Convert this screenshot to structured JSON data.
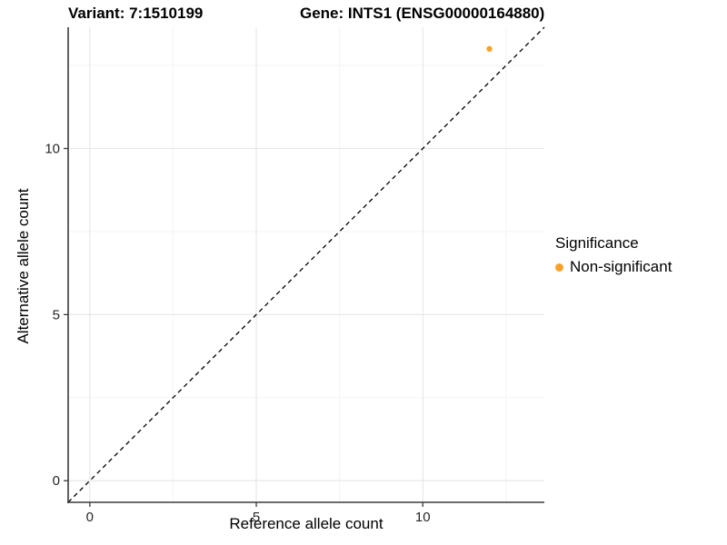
{
  "chart_data": {
    "type": "scatter",
    "titles": {
      "left": "Variant: 7:1510199",
      "right": "Gene: INTS1 (ENSG00000164880)"
    },
    "xlabel": "Reference allele count",
    "ylabel": "Alternative allele count",
    "xlim": [
      -0.65,
      13.65
    ],
    "ylim": [
      -0.65,
      13.65
    ],
    "x_major_ticks": [
      0,
      5,
      10
    ],
    "y_major_ticks": [
      0,
      5,
      10
    ],
    "x_minor_ticks": [
      2.5,
      7.5,
      12.5
    ],
    "y_minor_ticks": [
      2.5,
      7.5,
      12.5
    ],
    "grid": "major+minor",
    "points": [
      {
        "x": 12,
        "y": 13,
        "group": "Non-significant"
      }
    ],
    "reference_line": {
      "slope": 1,
      "intercept": 0,
      "style": "dashed",
      "color": "#000000"
    },
    "legend": {
      "title": "Significance",
      "position": "right",
      "entries": [
        {
          "label": "Non-significant",
          "color": "#F8A12C",
          "marker": "circle"
        }
      ]
    },
    "colors": {
      "point": "#F8A12C",
      "axis_line": "#3b3b3b",
      "tick_text": "#262626",
      "grid_major": "#e6e6e6",
      "grid_minor": "#f2f2f2",
      "background": "#ffffff"
    }
  }
}
